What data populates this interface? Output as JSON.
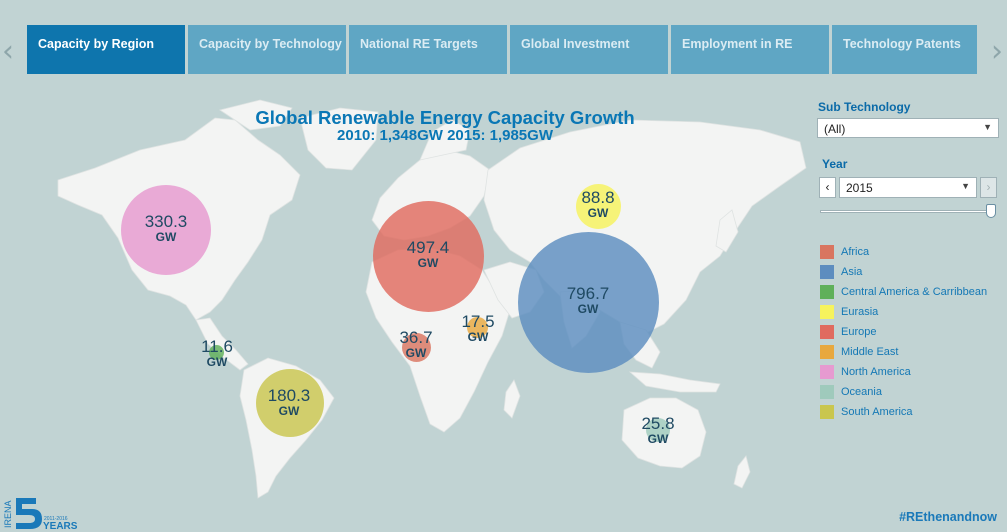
{
  "tabs": [
    {
      "label": "Capacity by Region",
      "active": true
    },
    {
      "label": "Capacity by Technology",
      "active": false
    },
    {
      "label": "National RE Targets",
      "active": false
    },
    {
      "label": "Global Investment",
      "active": false
    },
    {
      "label": "Employment in RE",
      "active": false
    },
    {
      "label": "Technology Patents",
      "active": false
    }
  ],
  "nav": {
    "prev_icon": "chevron-left-icon",
    "next_icon": "chevron-right-icon"
  },
  "map": {
    "title": "Global Renewable Energy Capacity Growth",
    "subtitle": "2010: 1,348GW   2015: 1,985GW",
    "unit": "GW",
    "bubbles": [
      {
        "region": "North America",
        "value": "330.3",
        "color": "#e69ad0"
      },
      {
        "region": "Europe",
        "value": "497.4",
        "color": "#e06b5f"
      },
      {
        "region": "Asia",
        "value": "796.7",
        "color": "#5d8dbf"
      },
      {
        "region": "Eurasia",
        "value": "88.8",
        "color": "#f6f35d"
      },
      {
        "region": "Middle East",
        "value": "17.5",
        "color": "#e8a83e"
      },
      {
        "region": "Africa",
        "value": "36.7",
        "color": "#d97560"
      },
      {
        "region": "Central America & Carribbean",
        "value": "11.6",
        "color": "#5fb05a"
      },
      {
        "region": "South America",
        "value": "180.3",
        "color": "#c9c64e"
      },
      {
        "region": "Oceania",
        "value": "25.8",
        "color": "#9fcabc"
      }
    ]
  },
  "filters": {
    "sub_technology": {
      "label": "Sub Technology",
      "value": "(All)"
    },
    "year": {
      "label": "Year",
      "value": "2015",
      "slider_fraction": 1.0
    }
  },
  "legend": [
    {
      "label": "Africa",
      "color": "#d97560"
    },
    {
      "label": "Asia",
      "color": "#5d8dbf"
    },
    {
      "label": "Central America & Carribbean",
      "color": "#5fb05a"
    },
    {
      "label": "Eurasia",
      "color": "#f6f35d"
    },
    {
      "label": "Europe",
      "color": "#e06b5f"
    },
    {
      "label": "Middle East",
      "color": "#e8a83e"
    },
    {
      "label": "North America",
      "color": "#e69ad0"
    },
    {
      "label": "Oceania",
      "color": "#9fcabc"
    },
    {
      "label": "South America",
      "color": "#c9c64e"
    }
  ],
  "footer": {
    "logo_org": "IRENA",
    "logo_years": "YEARS",
    "logo_range": "2011-2016",
    "hashtag": "#REthenandnow"
  }
}
